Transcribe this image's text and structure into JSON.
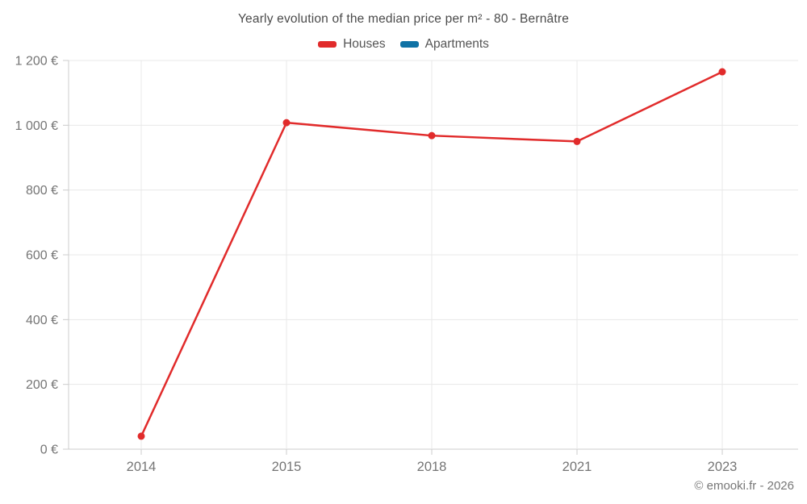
{
  "title": "Yearly evolution of the median price per m² - 80 - Bernâtre",
  "legend": [
    {
      "label": "Houses",
      "color": "#e12b2b"
    },
    {
      "label": "Apartments",
      "color": "#0f72a5"
    }
  ],
  "footer": "© emooki.fr - 2026",
  "colors": {
    "houses": "#e12b2b",
    "apartments": "#0f72a5",
    "grid": "#e8e8e8",
    "axis": "#cccccc",
    "tick_label": "#757575",
    "title_text": "#4a4a4a"
  },
  "chart_data": {
    "type": "line",
    "title": "Yearly evolution of the median price per m² - 80 - Bernâtre",
    "categories": [
      "2014",
      "2015",
      "2018",
      "2021",
      "2023"
    ],
    "series": [
      {
        "name": "Houses",
        "color": "#e12b2b",
        "values": [
          40,
          1008,
          968,
          950,
          1165
        ]
      },
      {
        "name": "Apartments",
        "color": "#0f72a5",
        "values": []
      }
    ],
    "xlabel": "",
    "ylabel": "",
    "ylim": [
      0,
      1200
    ],
    "y_tick_step": 200,
    "y_tick_labels": [
      "0 €",
      "200 €",
      "400 €",
      "600 €",
      "800 €",
      "1 000 €",
      "1 200 €"
    ],
    "grid": true,
    "legend_position": "top",
    "point_markers": true
  }
}
